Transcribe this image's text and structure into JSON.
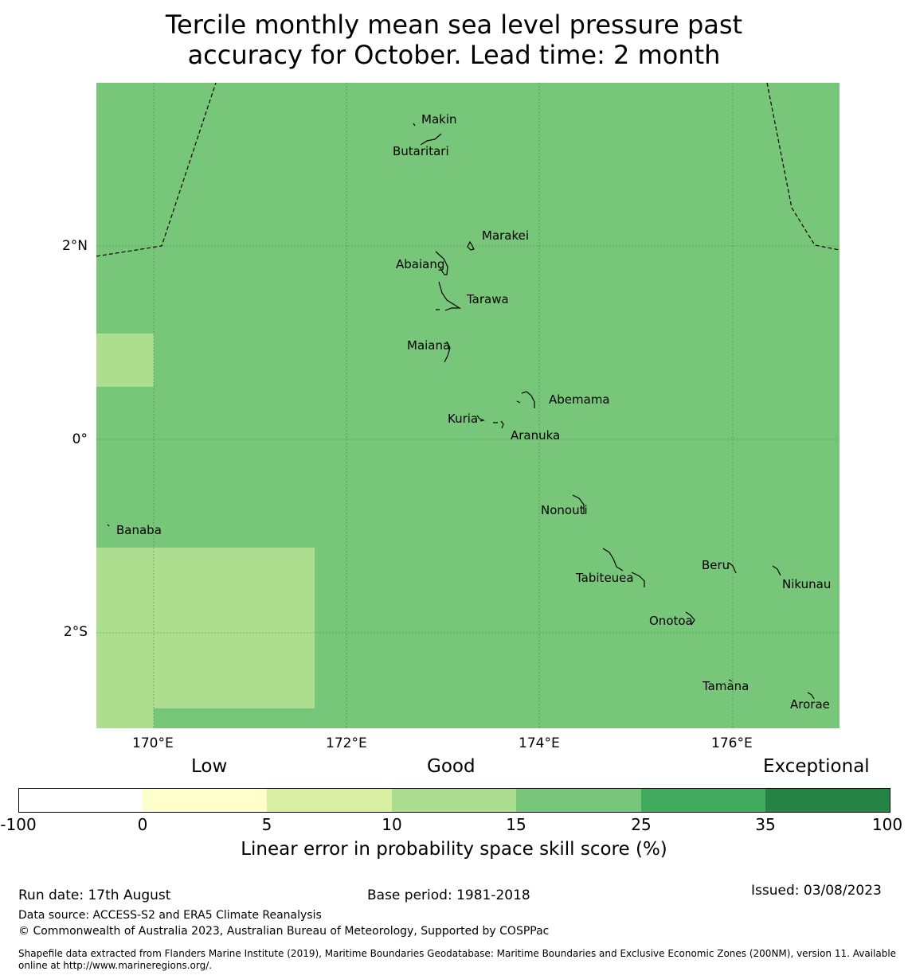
{
  "title_line1": "Tercile monthly mean sea level pressure past",
  "title_line2": "accuracy for October. Lead time: 2 month",
  "map": {
    "background_color": "#78c679",
    "lower_skill_color": "#addd8e",
    "lon_ticks": [
      "170°E",
      "172°E",
      "174°E",
      "176°E"
    ],
    "lat_ticks": [
      "2°N",
      "0°",
      "2°S"
    ],
    "islands": [
      {
        "name": "Makin"
      },
      {
        "name": "Butaritari"
      },
      {
        "name": "Marakei"
      },
      {
        "name": "Abaiang"
      },
      {
        "name": "Tarawa"
      },
      {
        "name": "Maiana"
      },
      {
        "name": "Abemama"
      },
      {
        "name": "Kuria"
      },
      {
        "name": "Aranuka"
      },
      {
        "name": "Nonouti"
      },
      {
        "name": "Banaba"
      },
      {
        "name": "Beru"
      },
      {
        "name": "Tabiteuea"
      },
      {
        "name": "Nikunau"
      },
      {
        "name": "Onotoa"
      },
      {
        "name": "Tamana"
      },
      {
        "name": "Arorae"
      }
    ]
  },
  "legend": {
    "categories": [
      "Low",
      "Good",
      "Exceptional"
    ],
    "bins": [
      {
        "color": "#ffffff"
      },
      {
        "color": "#ffffcc"
      },
      {
        "color": "#d9f0a3"
      },
      {
        "color": "#addd8e"
      },
      {
        "color": "#78c679"
      },
      {
        "color": "#41ab5d"
      },
      {
        "color": "#238443"
      }
    ],
    "tick_labels": [
      "-100",
      "0",
      "5",
      "10",
      "15",
      "25",
      "35",
      "100"
    ],
    "label": "Linear error in probability space skill score (%)"
  },
  "footer": {
    "run_date": "Run date: 17th August",
    "base_period": "Base period: 1981-2018",
    "issued": "Issued: 03/08/2023",
    "data_source": "Data source: ACCESS-S2 and ERA5 Climate Reanalysis",
    "copyright": "© Commonwealth of Australia 2023, Australian Bureau of Meteorology, Supported by COSPPac",
    "shapefile_line1": "Shapefile data extracted from Flanders Marine Institute (2019), Maritime Boundaries Geodatabase: Maritime Boundaries and Exclusive Economic Zones (200NM), version 11. Available",
    "shapefile_line2": "online at http://www.marineregions.org/."
  }
}
